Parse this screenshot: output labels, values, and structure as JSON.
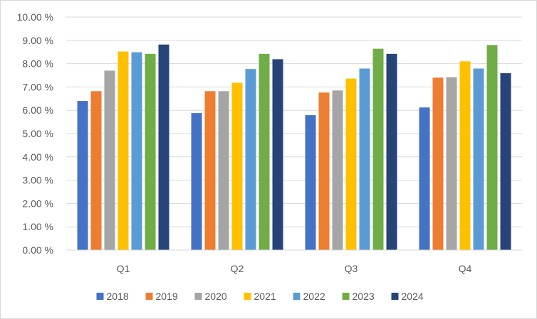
{
  "chart_data": {
    "type": "bar",
    "title": "",
    "xlabel": "",
    "ylabel": "",
    "categories": [
      "Q1",
      "Q2",
      "Q3",
      "Q4"
    ],
    "ylim": [
      0,
      10
    ],
    "yticks": [
      0,
      1,
      2,
      3,
      4,
      5,
      6,
      7,
      8,
      9,
      10
    ],
    "ytick_labels": [
      "0.00 %",
      "1.00 %",
      "2.00 %",
      "3.00 %",
      "4.00 %",
      "5.00 %",
      "6.00 %",
      "7.00 %",
      "8.00 %",
      "9.00 %",
      "10.00 %"
    ],
    "grid": true,
    "legend_position": "bottom",
    "series": [
      {
        "name": "2018",
        "color": "#4472C4",
        "values": [
          6.4,
          5.88,
          5.79,
          6.12
        ]
      },
      {
        "name": "2019",
        "color": "#ED7D31",
        "values": [
          6.82,
          6.82,
          6.76,
          7.4
        ]
      },
      {
        "name": "2020",
        "color": "#A5A5A5",
        "values": [
          7.7,
          6.82,
          6.85,
          7.42
        ]
      },
      {
        "name": "2021",
        "color": "#FFC000",
        "values": [
          8.52,
          7.18,
          7.36,
          8.1
        ]
      },
      {
        "name": "2022",
        "color": "#5B9BD5",
        "values": [
          8.49,
          7.77,
          7.79,
          7.79
        ]
      },
      {
        "name": "2023",
        "color": "#70AD47",
        "values": [
          8.42,
          8.42,
          8.64,
          8.8
        ]
      },
      {
        "name": "2024",
        "color": "#264478",
        "values": [
          8.82,
          8.19,
          8.42,
          7.59
        ]
      }
    ]
  }
}
